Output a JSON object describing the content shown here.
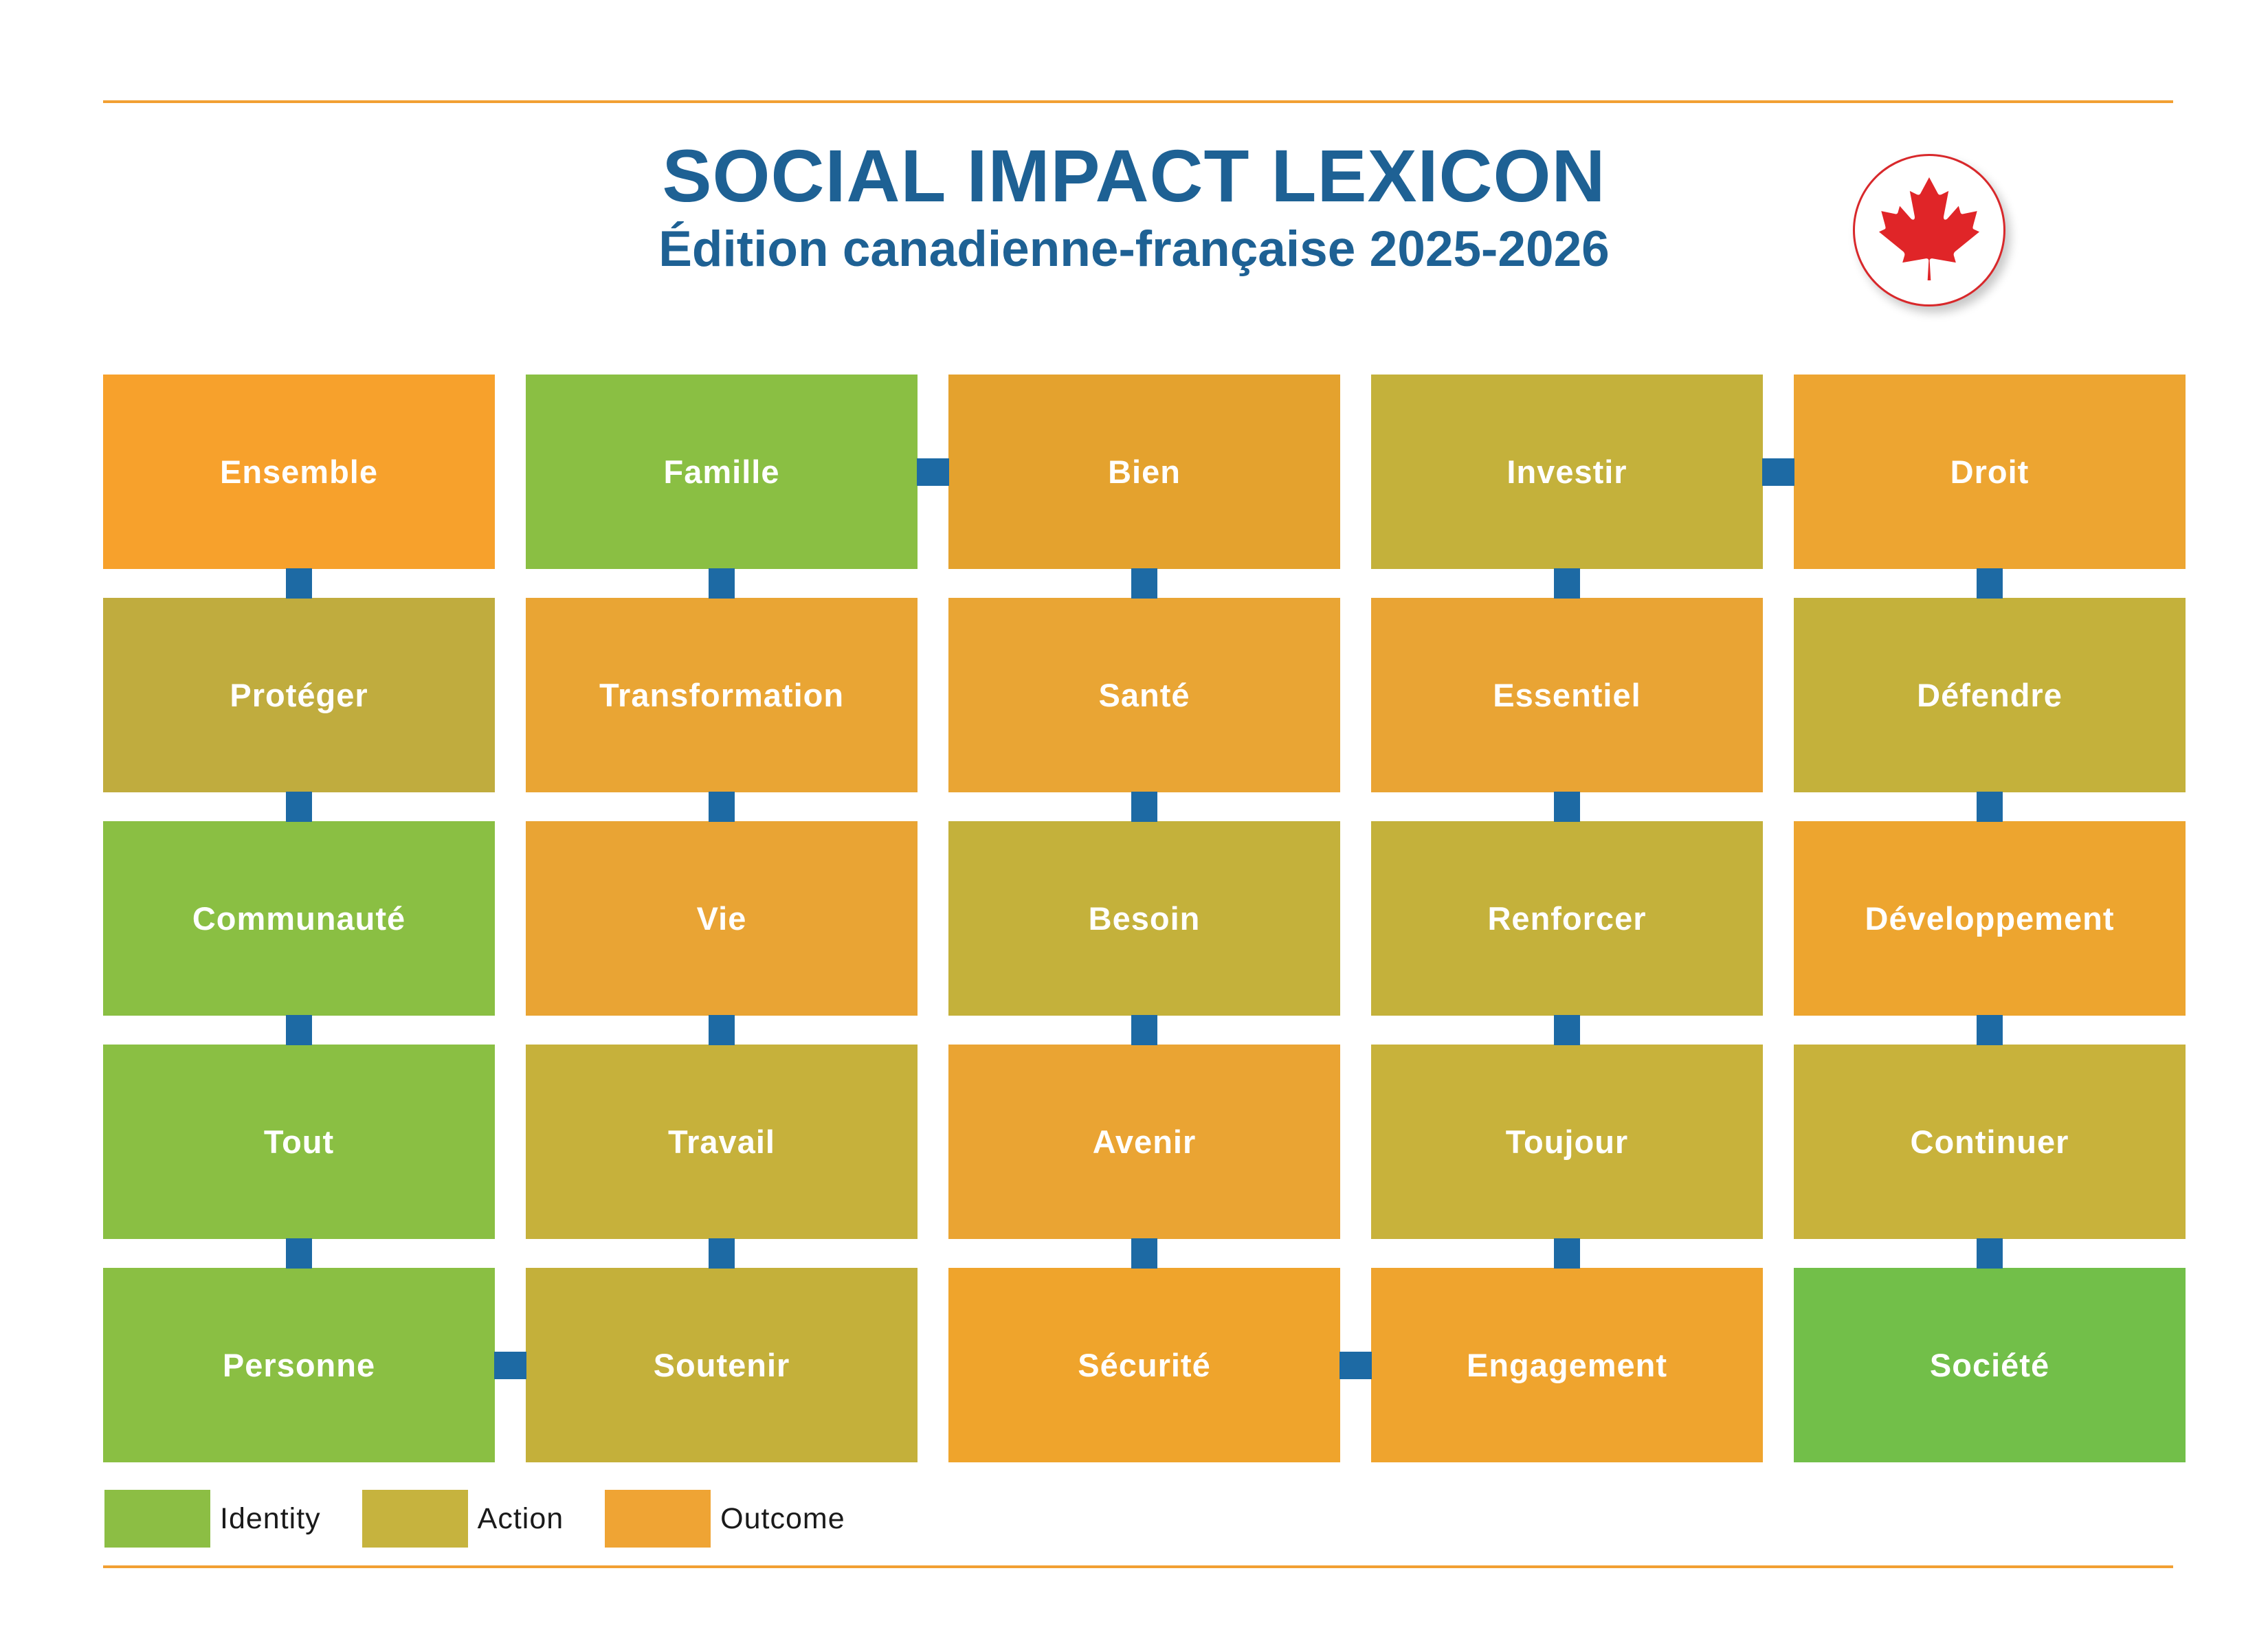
{
  "header": {
    "title": "SOCIAL IMPACT LEXICON",
    "subtitle": "Édition canadienne-française 2025-2026",
    "title_color": "#1E6194",
    "logo_leaf_color": "#E02528",
    "logo_circle_border": "#D8282B"
  },
  "rules_color": "#F2A033",
  "connector_color": "#1D6AA4",
  "categories": {
    "identity": "#8ABF43",
    "action": "#C4B13B",
    "outcome": "#E9A434"
  },
  "grid": {
    "rows": 5,
    "columns": 5,
    "tiles": [
      {
        "label": "Ensemble",
        "category": "outcome",
        "color": "#F7A12C"
      },
      {
        "label": "Famille",
        "category": "identity",
        "color": "#8ABF43"
      },
      {
        "label": "Bien",
        "category": "outcome",
        "color": "#E4A22E"
      },
      {
        "label": "Investir",
        "category": "action",
        "color": "#C4B13B"
      },
      {
        "label": "Droit",
        "category": "outcome",
        "color": "#EDA531"
      },
      {
        "label": "Protéger",
        "category": "action",
        "color": "#C0AC3E"
      },
      {
        "label": "Transformation",
        "category": "outcome",
        "color": "#E9A534"
      },
      {
        "label": "Santé",
        "category": "outcome",
        "color": "#E9A534"
      },
      {
        "label": "Essentiel",
        "category": "outcome",
        "color": "#E9A434"
      },
      {
        "label": "Défendre",
        "category": "action",
        "color": "#C4B13B"
      },
      {
        "label": "Communauté",
        "category": "identity",
        "color": "#8ABF43"
      },
      {
        "label": "Vie",
        "category": "outcome",
        "color": "#E9A434"
      },
      {
        "label": "Besoin",
        "category": "action",
        "color": "#C4B13B"
      },
      {
        "label": "Renforcer",
        "category": "action",
        "color": "#C4B13B"
      },
      {
        "label": "Développement",
        "category": "outcome",
        "color": "#EDA52F"
      },
      {
        "label": "Tout",
        "category": "identity",
        "color": "#8ABF43"
      },
      {
        "label": "Travail",
        "category": "action",
        "color": "#C6B13B"
      },
      {
        "label": "Avenir",
        "category": "outcome",
        "color": "#EAA433"
      },
      {
        "label": "Toujour",
        "category": "action",
        "color": "#C8B23B"
      },
      {
        "label": "Continuer",
        "category": "action",
        "color": "#C8B23B"
      },
      {
        "label": "Personne",
        "category": "identity",
        "color": "#8ABF43"
      },
      {
        "label": "Soutenir",
        "category": "action",
        "color": "#C4B03A"
      },
      {
        "label": "Sécurité",
        "category": "outcome",
        "color": "#EFA42C"
      },
      {
        "label": "Engagement",
        "category": "outcome",
        "color": "#EFA42E"
      },
      {
        "label": "Société",
        "category": "identity",
        "color": "#72BF49"
      }
    ],
    "connectors": {
      "vertical": [
        {
          "row": 0,
          "col": 0
        },
        {
          "row": 0,
          "col": 1
        },
        {
          "row": 0,
          "col": 2
        },
        {
          "row": 0,
          "col": 3
        },
        {
          "row": 0,
          "col": 4
        },
        {
          "row": 1,
          "col": 0
        },
        {
          "row": 1,
          "col": 1
        },
        {
          "row": 1,
          "col": 2
        },
        {
          "row": 1,
          "col": 3
        },
        {
          "row": 1,
          "col": 4
        },
        {
          "row": 2,
          "col": 0
        },
        {
          "row": 2,
          "col": 1
        },
        {
          "row": 2,
          "col": 2
        },
        {
          "row": 2,
          "col": 3
        },
        {
          "row": 2,
          "col": 4
        },
        {
          "row": 3,
          "col": 0
        },
        {
          "row": 3,
          "col": 1
        },
        {
          "row": 3,
          "col": 2
        },
        {
          "row": 3,
          "col": 3
        },
        {
          "row": 3,
          "col": 4
        }
      ],
      "horizontal": [
        {
          "row": 0,
          "gap": 2
        },
        {
          "row": 0,
          "gap": 4
        },
        {
          "row": 4,
          "gap": 1
        },
        {
          "row": 4,
          "gap": 3
        }
      ]
    }
  },
  "legend": {
    "items": [
      {
        "label": "Identity",
        "color": "#8CBE44"
      },
      {
        "label": "Action",
        "color": "#C6B33E"
      },
      {
        "label": "Outcome",
        "color": "#EFA434"
      }
    ],
    "text_color": "#1A1A1A"
  }
}
